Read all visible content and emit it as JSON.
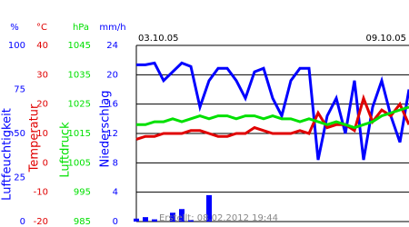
{
  "chart_data": {
    "type": "line",
    "date_labels": [
      "03.10.05",
      "09.10.05"
    ],
    "footer": "Erstellt: 08.02.2012 19:44",
    "grid": true,
    "grid_axis": 3,
    "axes": [
      {
        "unit": "%",
        "label": "Luftfeuchtigkeit",
        "color": "#0000ff",
        "ylim": [
          0,
          100
        ],
        "yticks": [
          0,
          25,
          50,
          75,
          100
        ]
      },
      {
        "unit": "°C",
        "label": "Temperatur",
        "color": "#e00000",
        "ylim": [
          -20,
          40
        ],
        "yticks": [
          -20,
          -10,
          0,
          10,
          20,
          30,
          40
        ]
      },
      {
        "unit": "hPa",
        "label": "Luftdruck",
        "color": "#00e000",
        "ylim": [
          985,
          1045
        ],
        "yticks": [
          985,
          995,
          1005,
          1015,
          1025,
          1035,
          1045
        ]
      },
      {
        "unit": "mm/h",
        "label": "Niederschlag",
        "color": "#0000ff",
        "ylim": [
          0,
          24
        ],
        "yticks": [
          0,
          4,
          8,
          12,
          16,
          20,
          24
        ]
      }
    ],
    "series": [
      {
        "name": "Luftfeuchtigkeit",
        "axis": 0,
        "kind": "line",
        "color": "#0000ff",
        "values": [
          89,
          89,
          90,
          80,
          85,
          90,
          88,
          65,
          80,
          87,
          87,
          80,
          70,
          85,
          87,
          70,
          60,
          80,
          87,
          87,
          35,
          60,
          70,
          50,
          80,
          35,
          65,
          80,
          60,
          45,
          75
        ]
      },
      {
        "name": "Temperatur",
        "axis": 1,
        "kind": "line",
        "color": "#e00000",
        "values": [
          8,
          9,
          9,
          10,
          10,
          10,
          11,
          11,
          10,
          9,
          9,
          10,
          10,
          12,
          11,
          10,
          10,
          10,
          11,
          10,
          17,
          12,
          13,
          13,
          11,
          22,
          14,
          18,
          16,
          20,
          13
        ]
      },
      {
        "name": "Luftdruck",
        "axis": 2,
        "kind": "line",
        "color": "#00e000",
        "values": [
          1018,
          1018,
          1019,
          1019,
          1020,
          1019,
          1020,
          1021,
          1020,
          1021,
          1021,
          1020,
          1021,
          1021,
          1020,
          1021,
          1020,
          1020,
          1019,
          1020,
          1019,
          1018,
          1019,
          1018,
          1017,
          1018,
          1019,
          1021,
          1022,
          1023,
          1024
        ]
      },
      {
        "name": "Niederschlag",
        "axis": 3,
        "kind": "bar",
        "color": "#0000ff",
        "values": [
          0.4,
          0.6,
          0.3,
          0,
          1.2,
          1.7,
          0.2,
          0,
          3.6,
          0,
          0,
          0,
          0,
          0,
          0,
          0,
          0,
          0,
          0,
          0,
          0,
          0,
          0,
          0,
          0,
          0,
          0,
          0,
          0,
          0,
          0
        ]
      }
    ]
  }
}
